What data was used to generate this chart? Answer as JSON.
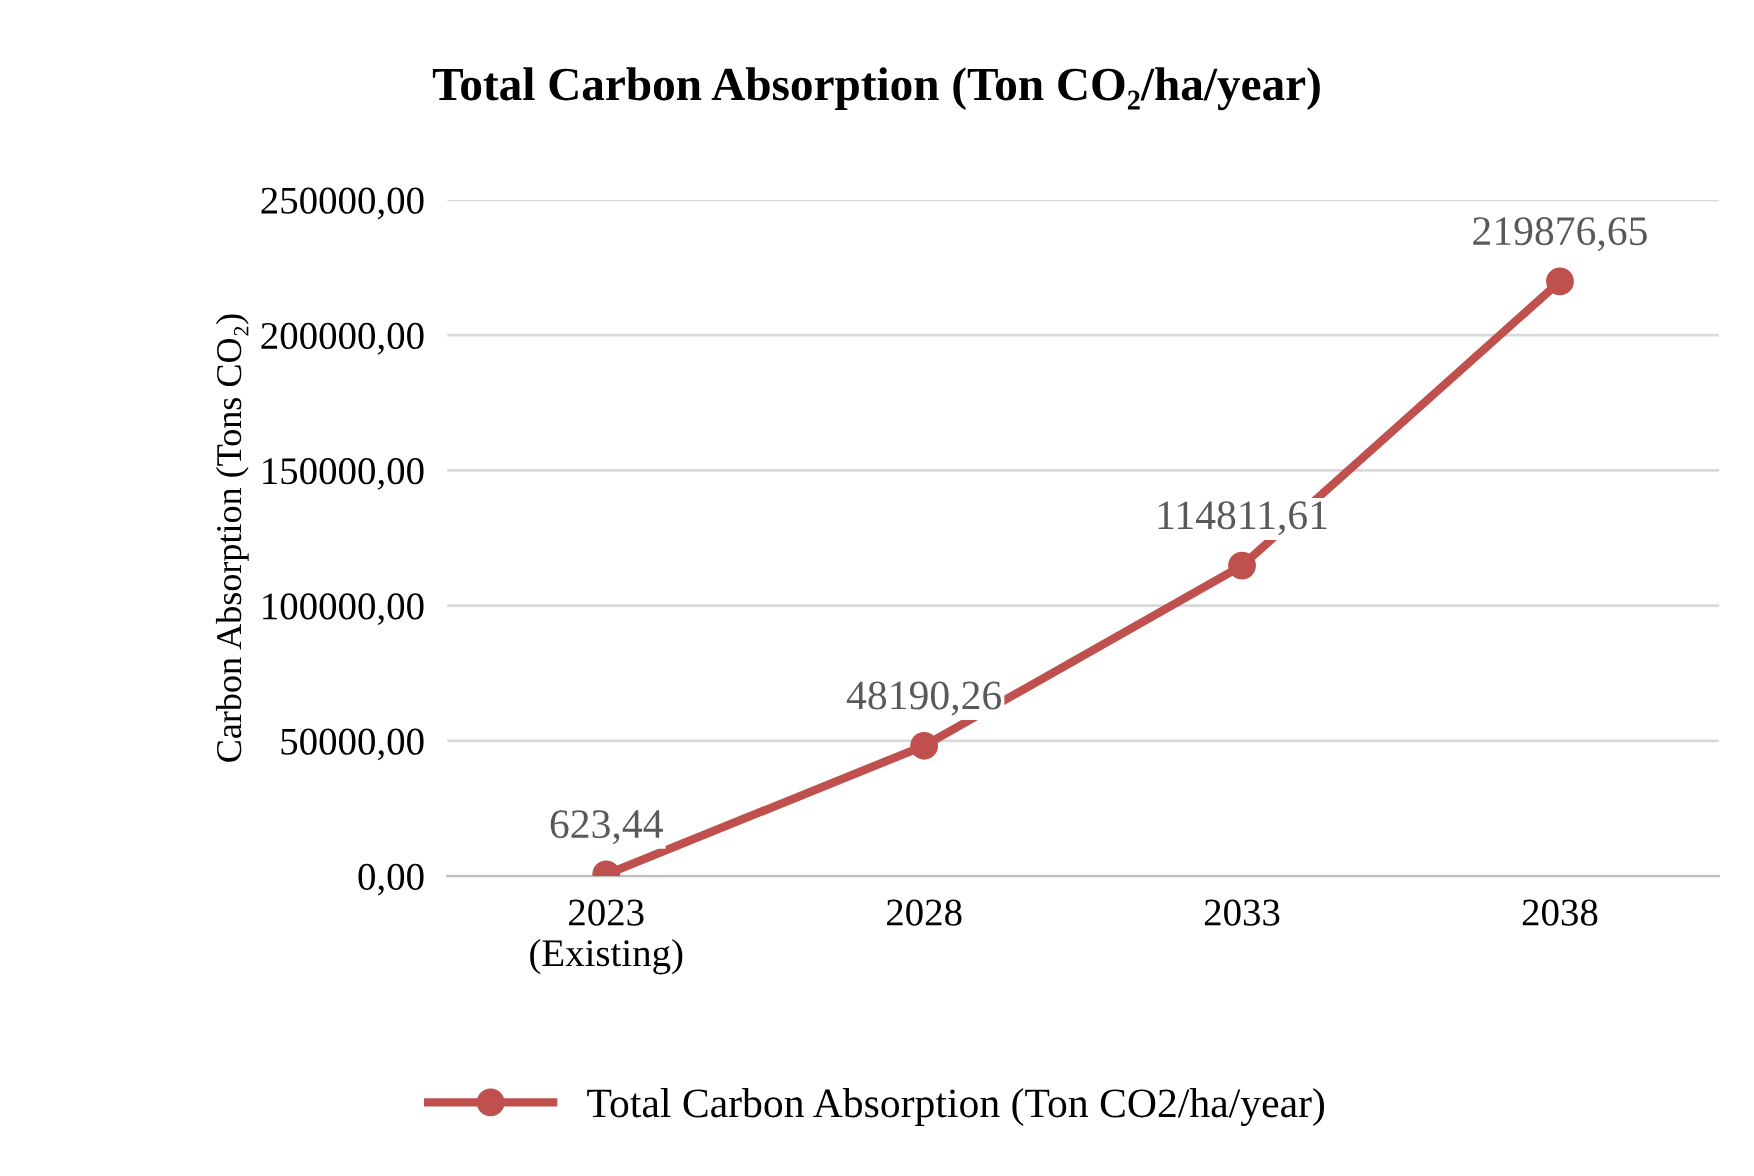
{
  "chart_data": {
    "type": "line",
    "title": "Total Carbon Absorption (Ton CO₂/ha/year)",
    "ylabel": "Carbon Absorption (Tons CO₂)",
    "categories": [
      "2023\n(Existing)",
      "2028",
      "2033",
      "2038"
    ],
    "series": [
      {
        "name": "Total Carbon Absorption (Ton CO2/ha/year)",
        "color": "#c0504d",
        "values": [
          623.44,
          48190.26,
          114811.61,
          219876.65
        ],
        "value_labels": [
          "623,44",
          "48190,26",
          "114811,61",
          "219876,65"
        ]
      }
    ],
    "ylim": [
      0,
      250000
    ],
    "yticks": [
      {
        "value": 0,
        "label": "0,00"
      },
      {
        "value": 50000,
        "label": "50000,00"
      },
      {
        "value": 100000,
        "label": "100000,00"
      },
      {
        "value": 150000,
        "label": "150000,00"
      },
      {
        "value": 200000,
        "label": "200000,00"
      },
      {
        "value": 250000,
        "label": "250000,00"
      }
    ],
    "grid": "y",
    "legend": "bottom",
    "marker": "circle",
    "line_style": "solid"
  }
}
